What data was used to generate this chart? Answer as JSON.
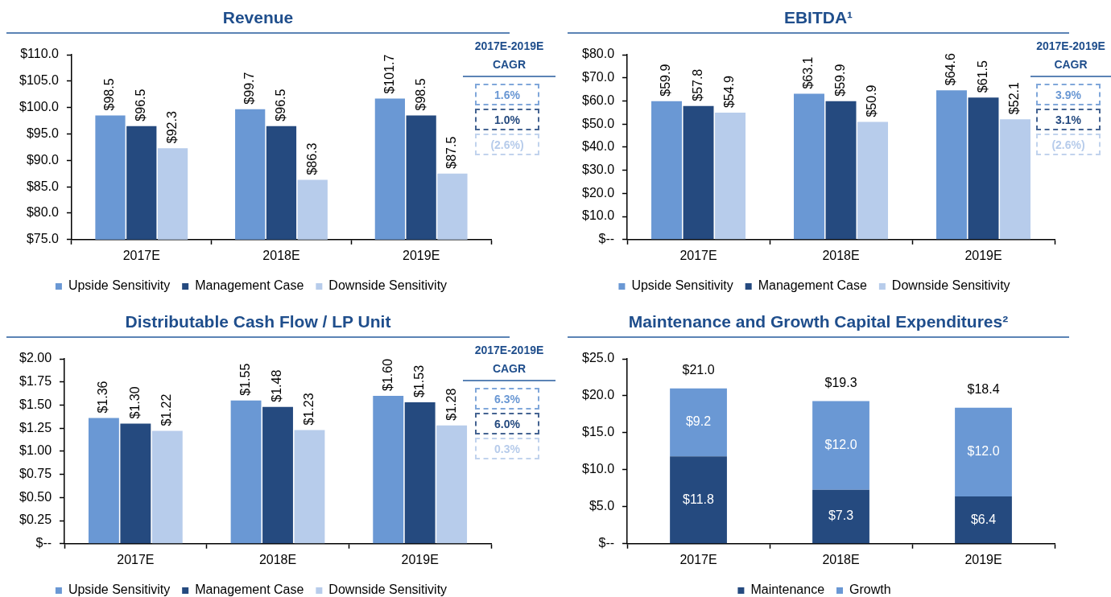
{
  "chart_data": [
    {
      "type": "bar",
      "title": "Revenue",
      "categories": [
        "2017E",
        "2018E",
        "2019E"
      ],
      "series": [
        {
          "name": "Upside Sensitivity",
          "color": "#6a98d4",
          "values": [
            98.5,
            99.7,
            101.7
          ],
          "value_labels": [
            "$98.5",
            "$99.7",
            "$101.7"
          ]
        },
        {
          "name": "Management Case",
          "color": "#254a7f",
          "values": [
            96.5,
            96.5,
            98.5
          ],
          "value_labels": [
            "$96.5",
            "$96.5",
            "$98.5"
          ]
        },
        {
          "name": "Downside Sensitivity",
          "color": "#b7cceb",
          "values": [
            92.3,
            86.3,
            87.5
          ],
          "value_labels": [
            "$92.3",
            "$86.3",
            "$87.5"
          ]
        }
      ],
      "ylim": [
        75,
        110
      ],
      "yticks": [
        {
          "value": 75,
          "label": "$75.0"
        },
        {
          "value": 80,
          "label": "$80.0"
        },
        {
          "value": 85,
          "label": "$85.0"
        },
        {
          "value": 90,
          "label": "$90.0"
        },
        {
          "value": 95,
          "label": "$95.0"
        },
        {
          "value": 100,
          "label": "$100.0"
        },
        {
          "value": 105,
          "label": "$105.0"
        },
        {
          "value": 110,
          "label": "$110.0"
        }
      ],
      "legend": "bottom",
      "annotations": [
        "2017E-2019E CAGR",
        "1.6%",
        "1.0%",
        "(2.6%)"
      ]
    },
    {
      "type": "bar",
      "title": "EBITDA¹",
      "categories": [
        "2017E",
        "2018E",
        "2019E"
      ],
      "series": [
        {
          "name": "Upside Sensitivity",
          "color": "#6a98d4",
          "values": [
            59.9,
            63.1,
            64.6
          ],
          "value_labels": [
            "$59.9",
            "$63.1",
            "$64.6"
          ]
        },
        {
          "name": "Management Case",
          "color": "#254a7f",
          "values": [
            57.8,
            59.9,
            61.5
          ],
          "value_labels": [
            "$57.8",
            "$59.9",
            "$61.5"
          ]
        },
        {
          "name": "Downside Sensitivity",
          "color": "#b7cceb",
          "values": [
            54.9,
            50.9,
            52.1
          ],
          "value_labels": [
            "$54.9",
            "$50.9",
            "$52.1"
          ]
        }
      ],
      "ylim": [
        0,
        80
      ],
      "yticks": [
        {
          "value": 0,
          "label": "$--"
        },
        {
          "value": 10,
          "label": "$10.0"
        },
        {
          "value": 20,
          "label": "$20.0"
        },
        {
          "value": 30,
          "label": "$30.0"
        },
        {
          "value": 40,
          "label": "$40.0"
        },
        {
          "value": 50,
          "label": "$50.0"
        },
        {
          "value": 60,
          "label": "$60.0"
        },
        {
          "value": 70,
          "label": "$70.0"
        },
        {
          "value": 80,
          "label": "$80.0"
        }
      ],
      "legend": "bottom",
      "annotations": [
        "2017E-2019E CAGR",
        "3.9%",
        "3.1%",
        "(2.6%)"
      ]
    },
    {
      "type": "bar",
      "title": "Distributable Cash Flow / LP Unit",
      "categories": [
        "2017E",
        "2018E",
        "2019E"
      ],
      "series": [
        {
          "name": "Upside Sensitivity",
          "color": "#6a98d4",
          "values": [
            1.36,
            1.55,
            1.6
          ],
          "value_labels": [
            "$1.36",
            "$1.55",
            "$1.60"
          ]
        },
        {
          "name": "Management Case",
          "color": "#254a7f",
          "values": [
            1.3,
            1.48,
            1.53
          ],
          "value_labels": [
            "$1.30",
            "$1.48",
            "$1.53"
          ]
        },
        {
          "name": "Downside Sensitivity",
          "color": "#b7cceb",
          "values": [
            1.22,
            1.23,
            1.28
          ],
          "value_labels": [
            "$1.22",
            "$1.23",
            "$1.28"
          ]
        }
      ],
      "ylim": [
        0,
        2
      ],
      "yticks": [
        {
          "value": 0,
          "label": "$--"
        },
        {
          "value": 0.25,
          "label": "$0.25"
        },
        {
          "value": 0.5,
          "label": "$0.50"
        },
        {
          "value": 0.75,
          "label": "$0.75"
        },
        {
          "value": 1,
          "label": "$1.00"
        },
        {
          "value": 1.25,
          "label": "$1.25"
        },
        {
          "value": 1.5,
          "label": "$1.50"
        },
        {
          "value": 1.75,
          "label": "$1.75"
        },
        {
          "value": 2,
          "label": "$2.00"
        }
      ],
      "legend": "bottom",
      "annotations": [
        "2017E-2019E CAGR",
        "6.3%",
        "6.0%",
        "0.3%"
      ]
    },
    {
      "type": "bar",
      "title": "Maintenance and Growth Capital Expenditures²",
      "categories": [
        "2017E",
        "2018E",
        "2019E"
      ],
      "stacked": true,
      "series": [
        {
          "name": "Maintenance",
          "color": "#254a7f",
          "values": [
            11.8,
            7.3,
            6.4
          ],
          "value_labels": [
            "$11.8",
            "$7.3",
            "$6.4"
          ]
        },
        {
          "name": "Growth",
          "color": "#6a98d4",
          "values": [
            9.2,
            12.0,
            12.0
          ],
          "value_labels": [
            "$9.2",
            "$12.0",
            "$12.0"
          ]
        }
      ],
      "totals": [
        "$21.0",
        "$19.3",
        "$18.4"
      ],
      "ylim": [
        0,
        25
      ],
      "yticks": [
        {
          "value": 0,
          "label": "$--"
        },
        {
          "value": 5,
          "label": "$5.0"
        },
        {
          "value": 10,
          "label": "$10.0"
        },
        {
          "value": 15,
          "label": "$15.0"
        },
        {
          "value": 20,
          "label": "$20.0"
        },
        {
          "value": 25,
          "label": "$25.0"
        }
      ],
      "legend": "bottom"
    }
  ]
}
